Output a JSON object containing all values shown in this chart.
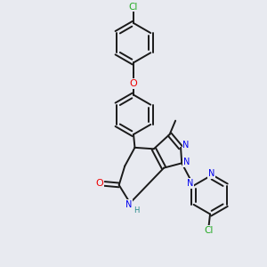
{
  "bg_color": "#e8eaf0",
  "bond_color": "#1a1a1a",
  "bond_width": 1.4,
  "atom_colors": {
    "N": "#0000ee",
    "O": "#ee0000",
    "Cl": "#22aa22",
    "H": "#228888",
    "C": "#1a1a1a"
  },
  "font_size": 7.0,
  "dbo": 0.08
}
